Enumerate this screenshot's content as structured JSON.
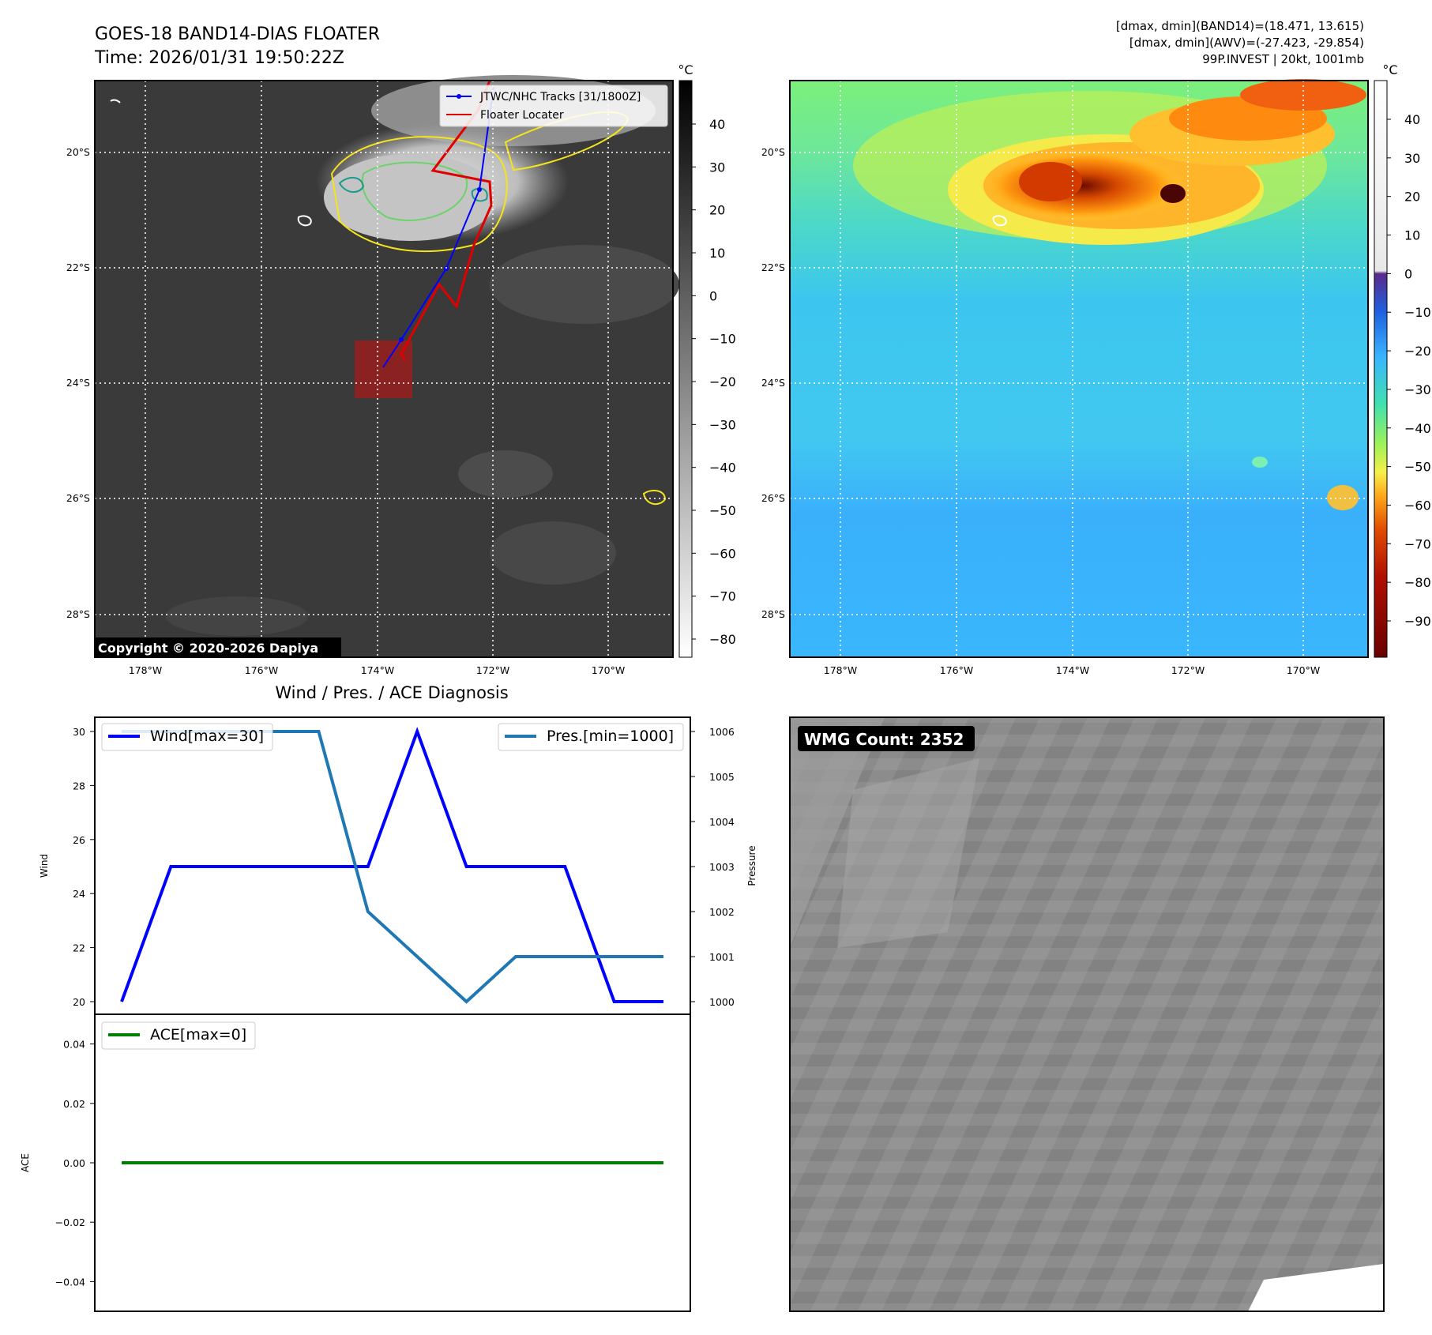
{
  "header": {
    "title_line1": "GOES-18 BAND14-DIAS FLOATER",
    "title_line2": "Time: 2026/01/31 19:50:22Z",
    "info_line1": "[dmax, dmin](BAND14)=(18.471, 13.615)",
    "info_line2": "[dmax, dmin](AWV)=(-27.423, -29.854)",
    "info_line3": "99P.INVEST | 20kt, 1001mb"
  },
  "maps": {
    "lat_labels": [
      "20°S",
      "22°S",
      "24°S",
      "26°S",
      "28°S"
    ],
    "lon_labels": [
      "178°W",
      "176°W",
      "174°W",
      "172°W",
      "170°W"
    ],
    "unit": "°C",
    "copyright": "Copyright © 2020-2026 Dapiya",
    "ir_colorbar_ticks": [
      "40",
      "30",
      "20",
      "10",
      "0",
      "−10",
      "−20",
      "−30",
      "−40",
      "−50",
      "−60",
      "−70",
      "−80"
    ],
    "awv_colorbar_ticks": [
      "40",
      "30",
      "20",
      "10",
      "0",
      "−10",
      "−20",
      "−30",
      "−40",
      "−50",
      "−60",
      "−70",
      "−80",
      "−90"
    ],
    "legend_tracks": "JTWC/NHC Tracks [31/1800Z]",
    "legend_floater": "Floater Locater",
    "colors": {
      "track": "#0000ff",
      "floater": "#e00000",
      "contour_yellow": "#f4e41c",
      "contour_green": "#6ad36a",
      "contour_teal": "#1a9a8a"
    }
  },
  "diagnosis": {
    "title": "Wind / Pres. / ACE Diagnosis",
    "wind_ylabel": "Wind",
    "pressure_ylabel": "Pressure",
    "ace_ylabel": "ACE",
    "wind_ticks": [
      "30",
      "28",
      "26",
      "24",
      "22",
      "20"
    ],
    "pressure_ticks": [
      "1006",
      "1005",
      "1004",
      "1003",
      "1002",
      "1001",
      "1000"
    ],
    "ace_ticks": [
      "0.04",
      "0.02",
      "0.00",
      "−0.02",
      "−0.04"
    ],
    "legend_wind": "Wind[max=30]",
    "legend_pres": "Pres.[min=1000]",
    "legend_ace": "ACE[max=0]"
  },
  "wmg": {
    "label": "WMG Count: 2352"
  },
  "chart_data": [
    {
      "type": "line",
      "x": [
        0,
        1,
        2,
        3,
        4,
        5,
        6,
        7,
        8,
        9,
        10,
        11
      ],
      "series": [
        {
          "name": "Wind[max=30]",
          "axis": "left",
          "color": "#0000ff",
          "values": [
            20,
            25,
            25,
            25,
            25,
            25,
            30,
            25,
            25,
            25,
            20,
            20
          ]
        },
        {
          "name": "Pres.[min=1000]",
          "axis": "right",
          "color": "#1f77b4",
          "values": [
            1006,
            1006,
            1006,
            1006,
            1006,
            1002,
            1001,
            1000,
            1001,
            1001,
            1001,
            1001
          ]
        }
      ],
      "ylim": [
        20,
        30
      ],
      "ylim_right": [
        1000,
        1006
      ],
      "ylabel": "Wind",
      "ylabel_right": "Pressure"
    },
    {
      "type": "line",
      "x": [
        0,
        1,
        2,
        3,
        4,
        5,
        6,
        7,
        8,
        9,
        10,
        11
      ],
      "series": [
        {
          "name": "ACE[max=0]",
          "color": "#008000",
          "values": [
            0,
            0,
            0,
            0,
            0,
            0,
            0,
            0,
            0,
            0,
            0,
            0
          ]
        }
      ],
      "ylim": [
        -0.05,
        0.05
      ],
      "ylabel": "ACE"
    }
  ]
}
